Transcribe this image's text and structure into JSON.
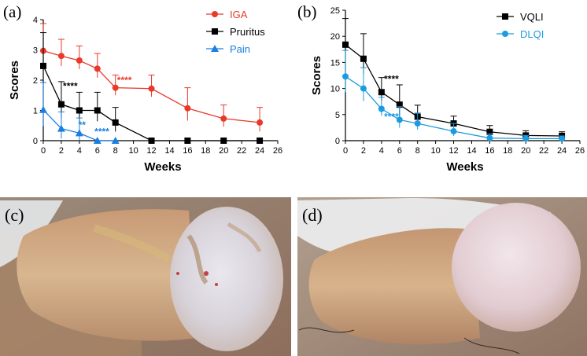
{
  "panels": {
    "a": "(a)",
    "b": "(b)",
    "c": "(c)",
    "d": "(d)"
  },
  "chart_data": [
    {
      "type": "line",
      "panel": "(a)",
      "xlabel": "Weeks",
      "ylabel": "Scores",
      "xlim": [
        0,
        26
      ],
      "ylim": [
        0,
        4
      ],
      "x_ticks": [
        "0",
        "2",
        "4",
        "6",
        "8",
        "10",
        "12",
        "14",
        "16",
        "18",
        "20",
        "22",
        "24",
        "26"
      ],
      "y_ticks": [
        "0",
        "1",
        "2",
        "3",
        "4"
      ],
      "legend_position": "top-right",
      "series": [
        {
          "name": "IGA",
          "color": "#e8392a",
          "marker": "circle",
          "x": [
            0,
            2,
            4,
            6,
            8,
            12,
            16,
            20,
            24
          ],
          "y": [
            2.97,
            2.8,
            2.65,
            2.38,
            1.75,
            1.72,
            1.07,
            0.73,
            0.6
          ],
          "err": [
            0.9,
            0.55,
            0.48,
            0.5,
            0.42,
            0.45,
            0.68,
            0.45,
            0.5
          ]
        },
        {
          "name": "Pruritus",
          "color": "#000000",
          "marker": "square",
          "x": [
            0,
            2,
            4,
            6,
            8,
            12,
            16,
            20,
            24
          ],
          "y": [
            2.47,
            1.2,
            1.0,
            1.0,
            0.6,
            0.0,
            0.0,
            0.0,
            0.0
          ],
          "err": [
            1.1,
            0.75,
            0.6,
            0.6,
            0.5,
            0,
            0,
            0,
            0
          ]
        },
        {
          "name": "Pain",
          "color": "#1b7fe0",
          "marker": "triangle",
          "x": [
            0,
            2,
            4,
            6,
            8
          ],
          "y": [
            1.02,
            0.4,
            0.25,
            0.0,
            0.0
          ],
          "err": [
            0.9,
            0.55,
            0.5,
            0,
            0
          ]
        }
      ],
      "annotations": [
        {
          "text": "****",
          "x": 3.0,
          "y": 1.7,
          "color": "#000000"
        },
        {
          "text": "**",
          "x": 4.3,
          "y": 0.42,
          "color": "#1b7fe0"
        },
        {
          "text": "****",
          "x": 6.5,
          "y": 0.2,
          "color": "#1b7fe0"
        },
        {
          "text": "****",
          "x": 9.0,
          "y": 1.9,
          "color": "#e8392a"
        }
      ]
    },
    {
      "type": "line",
      "panel": "(b)",
      "xlabel": "Weeks",
      "ylabel": "Scores",
      "xlim": [
        0,
        26
      ],
      "ylim": [
        0,
        25
      ],
      "x_ticks": [
        "0",
        "2",
        "4",
        "6",
        "8",
        "10",
        "12",
        "14",
        "16",
        "18",
        "20",
        "22",
        "24",
        "26"
      ],
      "y_ticks": [
        "0",
        "5",
        "10",
        "15",
        "20",
        "25"
      ],
      "legend_position": "top-right",
      "series": [
        {
          "name": "VQLI",
          "color": "#000000",
          "marker": "square",
          "x": [
            0,
            2,
            4,
            6,
            8,
            12,
            16,
            20,
            24
          ],
          "y": [
            18.4,
            15.7,
            9.3,
            6.9,
            4.6,
            3.3,
            1.7,
            1.0,
            0.9
          ],
          "err": [
            5.0,
            4.8,
            2.8,
            3.8,
            2.2,
            1.4,
            1.2,
            0.9,
            0.8
          ]
        },
        {
          "name": "DLQI",
          "color": "#1b9be0",
          "marker": "circle",
          "x": [
            0,
            2,
            4,
            6,
            8,
            12,
            16,
            20,
            24
          ],
          "y": [
            12.3,
            10.0,
            6.1,
            4.0,
            3.3,
            1.8,
            0.5,
            0.4,
            0.4
          ],
          "err": [
            5.0,
            4.0,
            2.2,
            2.5,
            2.0,
            1.5,
            0.8,
            0.6,
            0.5
          ]
        }
      ],
      "annotations": [
        {
          "text": "****",
          "x": 5.1,
          "y": 11.2,
          "color": "#000000"
        },
        {
          "text": "****",
          "x": 5.1,
          "y": 4.0,
          "color": "#1b9be0"
        }
      ]
    }
  ]
}
